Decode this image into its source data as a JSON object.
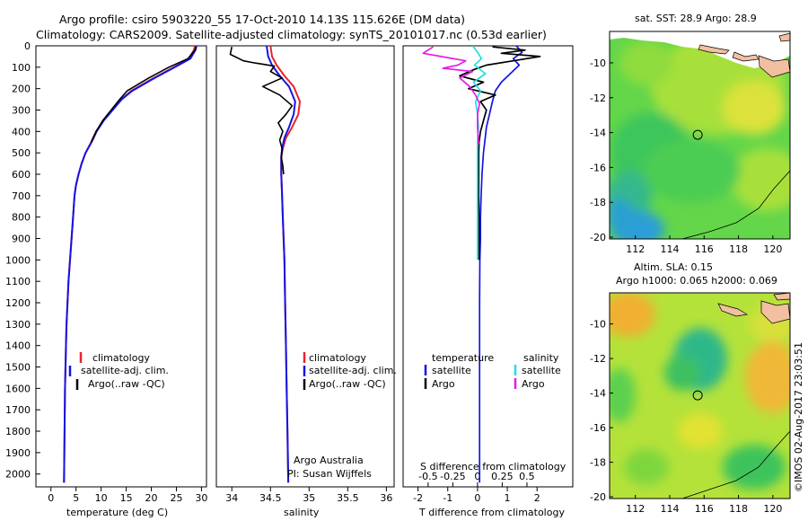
{
  "header": {
    "line1": "Argo profile: csiro 5903220_55 17-Oct-2010 14.13S 115.626E (DM data)",
    "line2": "Climatology: CARS2009. Satellite-adjusted climatology: synTS_20101017.nc (0.53d earlier)"
  },
  "watermark": "©IMOS 02-Aug-2017 23:03:51",
  "colors": {
    "clim": "#e8242a",
    "sat": "#1414e6",
    "argo": "#000000",
    "sal_sat": "#21e0e0",
    "sal_argo": "#e51ce5"
  },
  "chart_data": [
    {
      "type": "line",
      "name": "temperature-profile",
      "xlabel": "temperature (deg C)",
      "ylabel": "",
      "xlim": [
        -3,
        31
      ],
      "ylim": [
        2060,
        0
      ],
      "xticks": [
        "0",
        "5",
        "10",
        "15",
        "20",
        "25",
        "30"
      ],
      "xtick_values": [
        0,
        5,
        10,
        15,
        20,
        25,
        30
      ],
      "yticks": [
        "0",
        "100",
        "200",
        "300",
        "400",
        "500",
        "600",
        "700",
        "800",
        "900",
        "1000",
        "1100",
        "1200",
        "1300",
        "1400",
        "1500",
        "1600",
        "1700",
        "1800",
        "1900",
        "2000"
      ],
      "ytick_values": [
        0,
        100,
        200,
        300,
        400,
        500,
        600,
        700,
        800,
        900,
        1000,
        1100,
        1200,
        1300,
        1400,
        1500,
        1600,
        1700,
        1800,
        1900,
        2000
      ],
      "legend": [
        "climatology",
        "satellite-adj. clim.",
        "Argo(..raw -QC)"
      ],
      "series": [
        {
          "name": "climatology",
          "x": [
            28.7,
            28.5,
            27.5,
            24.5,
            20.5,
            16.0,
            14.0,
            12.2,
            10.4,
            9.0,
            8.0,
            6.9,
            6.1,
            5.5,
            5.0,
            4.7,
            4.4,
            4.1,
            3.8,
            3.5,
            3.3,
            3.1,
            3.0,
            2.8,
            2.7,
            2.6
          ],
          "y": [
            0,
            20,
            60,
            100,
            150,
            210,
            250,
            300,
            350,
            400,
            450,
            500,
            550,
            600,
            650,
            700,
            800,
            900,
            1000,
            1100,
            1200,
            1300,
            1400,
            1600,
            1800,
            2040
          ]
        },
        {
          "name": "satellite-adj. clim.",
          "x": [
            29.0,
            28.8,
            27.8,
            24.7,
            20.7,
            16.2,
            14.1,
            12.3,
            10.5,
            9.1,
            8.1,
            6.9,
            6.1,
            5.5,
            5.0,
            4.7,
            4.4,
            4.1,
            3.8,
            3.5,
            3.3,
            3.1,
            3.0,
            2.8,
            2.7,
            2.6
          ],
          "y": [
            0,
            20,
            60,
            100,
            150,
            210,
            250,
            300,
            350,
            400,
            450,
            500,
            550,
            600,
            650,
            700,
            800,
            900,
            1000,
            1100,
            1200,
            1300,
            1400,
            1600,
            1800,
            2040
          ]
        },
        {
          "name": "Argo(..raw -QC)",
          "x": [
            28.9,
            28.7,
            27.3,
            23.5,
            19.5,
            15.2,
            13.7,
            12.0,
            10.3,
            9.0,
            8.0
          ],
          "y": [
            5,
            20,
            60,
            100,
            150,
            210,
            250,
            300,
            350,
            400,
            450
          ]
        }
      ]
    },
    {
      "type": "line",
      "name": "salinity-profile",
      "xlabel": "salinity",
      "xlim": [
        33.8,
        36.1
      ],
      "ylim": [
        2060,
        0
      ],
      "xticks": [
        "34",
        "34.5",
        "35",
        "35.5",
        "36"
      ],
      "xtick_values": [
        34,
        34.5,
        35,
        35.5,
        36
      ],
      "legend": [
        "climatology",
        "satellite-adj. clim.",
        "Argo(..raw -QC)"
      ],
      "annotation": [
        "Argo Australia",
        "PI: Susan Wijffels"
      ],
      "series": [
        {
          "name": "climatology",
          "x": [
            34.5,
            34.52,
            34.58,
            34.68,
            34.8,
            34.88,
            34.86,
            34.78,
            34.7,
            34.66,
            34.64,
            34.64,
            34.65,
            34.66,
            34.67,
            34.68,
            34.69,
            34.7,
            34.71,
            34.72,
            34.73
          ],
          "y": [
            0,
            50,
            90,
            140,
            190,
            260,
            320,
            380,
            430,
            480,
            520,
            600,
            700,
            800,
            900,
            1000,
            1200,
            1400,
            1600,
            1800,
            2040
          ]
        },
        {
          "name": "satellite-adj. clim.",
          "x": [
            34.45,
            34.47,
            34.52,
            34.62,
            34.74,
            34.82,
            34.8,
            34.74,
            34.68,
            34.65,
            34.64,
            34.64,
            34.65,
            34.66,
            34.67,
            34.68,
            34.69,
            34.7,
            34.71,
            34.72,
            34.73
          ],
          "y": [
            0,
            50,
            90,
            140,
            190,
            260,
            320,
            380,
            430,
            480,
            520,
            600,
            700,
            800,
            900,
            1000,
            1200,
            1400,
            1600,
            1800,
            2040
          ]
        },
        {
          "name": "Argo(..raw -QC)",
          "x": [
            34.0,
            33.98,
            34.15,
            34.3,
            34.55,
            34.5,
            34.65,
            34.4,
            34.62,
            34.78,
            34.7,
            34.6,
            34.66,
            34.62,
            34.65,
            34.64,
            34.66,
            34.67
          ],
          "y": [
            5,
            40,
            70,
            80,
            95,
            120,
            150,
            190,
            230,
            280,
            320,
            360,
            400,
            440,
            480,
            520,
            560,
            600
          ]
        }
      ]
    },
    {
      "type": "line",
      "name": "difference-profile",
      "xlabel": "T difference from climatology",
      "xlabel2": "S difference from climatology",
      "xlim": [
        -2.5,
        3.2
      ],
      "ylim": [
        2060,
        0
      ],
      "xticks": [
        "-2",
        "-1",
        "0",
        "1",
        "2"
      ],
      "xtick_values": [
        -2,
        -1,
        0,
        1,
        2
      ],
      "xticks2": [
        "-0.5",
        "-0.25",
        "0",
        "0.25",
        "0.5"
      ],
      "xtick2_values": [
        -0.5,
        -0.25,
        0,
        0.25,
        0.5
      ],
      "legend": {
        "temperature_title": "temperature",
        "salinity_title": "salinity",
        "items": [
          "satellite",
          "Argo",
          "satellite",
          "Argo"
        ]
      },
      "series": [
        {
          "name": "temperature satellite",
          "x": [
            1.3,
            1.5,
            1.2,
            1.4,
            1.1,
            0.8,
            0.6,
            0.5,
            0.4,
            0.3,
            0.25,
            0.2,
            0.15,
            0.12,
            0.1,
            0.1,
            0.08,
            0.07,
            0.07,
            0.07,
            0.07
          ],
          "y": [
            0,
            30,
            60,
            90,
            130,
            170,
            210,
            260,
            320,
            380,
            440,
            500,
            600,
            700,
            800,
            900,
            1000,
            1200,
            1400,
            1600,
            2040
          ]
        },
        {
          "name": "temperature Argo",
          "x": [
            0.5,
            1.6,
            0.8,
            2.1,
            1.2,
            0.3,
            -0.1,
            -0.6,
            0.2,
            -0.3,
            0.6,
            0.1,
            0.3,
            0.2,
            0.1,
            0.05,
            0.04,
            0.04,
            0.04,
            0.05,
            0.05,
            0.05
          ],
          "y": [
            5,
            20,
            35,
            50,
            70,
            90,
            110,
            140,
            170,
            200,
            230,
            260,
            300,
            350,
            400,
            450,
            500,
            600,
            700,
            800,
            900,
            1000
          ]
        },
        {
          "name": "salinity satellite",
          "x": [
            -0.05,
            0.0,
            0.04,
            -0.03,
            0.08,
            -0.04,
            0.03,
            -0.02,
            0.0,
            0.01,
            0.0,
            0.0,
            0.0,
            0.0
          ],
          "y": [
            0,
            30,
            60,
            90,
            130,
            170,
            210,
            260,
            320,
            380,
            450,
            600,
            800,
            1000
          ]
        },
        {
          "name": "salinity Argo",
          "x": [
            -0.45,
            -0.55,
            -0.12,
            -0.2,
            -0.35,
            -0.05,
            -0.18,
            -0.08,
            -0.02,
            0.02,
            0.0,
            0.0,
            0.01
          ],
          "y": [
            5,
            35,
            70,
            90,
            105,
            120,
            150,
            190,
            230,
            270,
            320,
            380,
            460
          ]
        }
      ]
    },
    {
      "type": "heatmap",
      "name": "sst-map",
      "title": "sat. SST: 28.9 Argo: 28.9",
      "xlim": [
        110.5,
        121
      ],
      "ylim": [
        -20.1,
        -8.2
      ],
      "xticks": [
        "112",
        "114",
        "116",
        "118",
        "120"
      ],
      "xtick_values": [
        112,
        114,
        116,
        118,
        120
      ],
      "yticks": [
        "-10",
        "-12",
        "-14",
        "-16",
        "-18",
        "-20"
      ],
      "ytick_values": [
        -10,
        -12,
        -14,
        -16,
        -18,
        -20
      ],
      "marker": {
        "lon": 115.626,
        "lat": -14.13
      }
    },
    {
      "type": "heatmap",
      "name": "sla-map",
      "title": "Altim. SLA: 0.15",
      "subtitle": "Argo h1000: 0.065 h2000: 0.069",
      "xlim": [
        110.5,
        121
      ],
      "ylim": [
        -20.1,
        -8.2
      ],
      "xticks": [
        "112",
        "114",
        "116",
        "118",
        "120"
      ],
      "xtick_values": [
        112,
        114,
        116,
        118,
        120
      ],
      "yticks": [
        "-10",
        "-12",
        "-14",
        "-16",
        "-18",
        "-20"
      ],
      "ytick_values": [
        -10,
        -12,
        -14,
        -16,
        -18,
        -20
      ],
      "marker": {
        "lon": 115.626,
        "lat": -14.13
      }
    }
  ]
}
